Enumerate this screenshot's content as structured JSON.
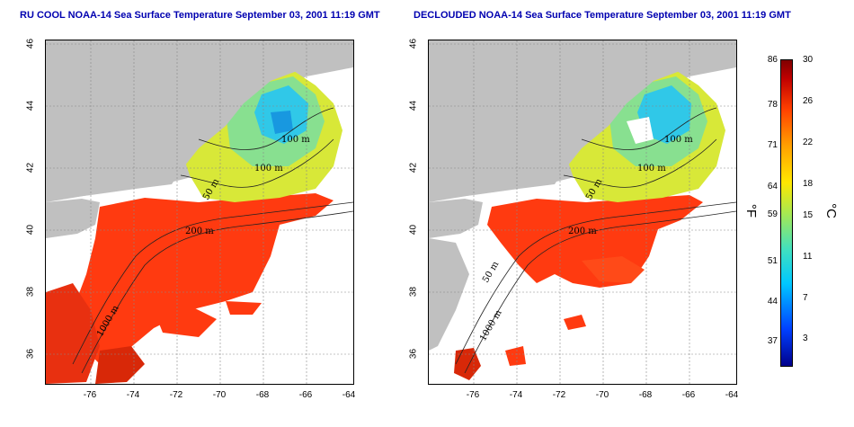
{
  "titles": {
    "left": "RU COOL NOAA-14 Sea Surface Temperature September 03, 2001 11:19 GMT",
    "right": "DECLOUDED NOAA-14 Sea Surface Temperature September 03, 2001 11:19 GMT"
  },
  "axes": {
    "lon_labels": [
      "-76",
      "-74",
      "-72",
      "-70",
      "-68",
      "-66",
      "-64"
    ],
    "lat_labels": [
      "36",
      "38",
      "40",
      "42",
      "44",
      "46"
    ]
  },
  "contour_labels": {
    "left": [
      "100 m",
      "100 m",
      "50 m",
      "200 m",
      "1000 m"
    ],
    "right": [
      "100 m",
      "100 m",
      "50 m",
      "200 m",
      "50 m",
      "1000 m"
    ]
  },
  "colorbar": {
    "fahrenheit_labels": [
      "86",
      "78",
      "71",
      "64",
      "59",
      "51",
      "44",
      "37"
    ],
    "celsius_labels": [
      "30",
      "26",
      "22",
      "18",
      "15",
      "11",
      "7",
      "3"
    ],
    "unit_left": "°F",
    "unit_right": "°C"
  },
  "colors": {
    "title": "#0000b0",
    "land": "#c0c0c0",
    "cloud": "#ffffff",
    "warm": "#ff3000",
    "cool": "#30c8e8",
    "mid": "#e8e030"
  }
}
